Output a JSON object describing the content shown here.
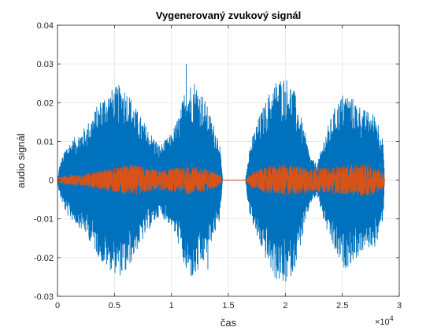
{
  "chart_data": {
    "type": "line",
    "title": "Vygenerovaný zvukový signál",
    "xlabel": "čas",
    "ylabel": "audio signál",
    "x_exponent_base": "×10",
    "x_exponent_power": "4",
    "xlim": [
      0,
      3
    ],
    "ylim": [
      -0.03,
      0.04
    ],
    "x_ticks": [
      "0",
      "0.5",
      "1",
      "1.5",
      "2",
      "2.5",
      "3"
    ],
    "y_ticks": [
      "-0.03",
      "-0.02",
      "-0.01",
      "0",
      "0.01",
      "0.02",
      "0.03",
      "0.04"
    ],
    "x_tick_values": [
      0,
      0.5,
      1,
      1.5,
      2,
      2.5,
      3
    ],
    "y_tick_values": [
      -0.03,
      -0.02,
      -0.01,
      0,
      0.01,
      0.02,
      0.03,
      0.04
    ],
    "grid": true,
    "box": true,
    "signal_end": 2.87,
    "series": [
      {
        "color": "#0072BD",
        "envelope": [
          [
            0.0,
            0.0
          ],
          [
            0.02,
            0.004
          ],
          [
            0.08,
            0.009
          ],
          [
            0.15,
            0.011
          ],
          [
            0.25,
            0.014
          ],
          [
            0.4,
            0.022
          ],
          [
            0.5,
            0.024
          ],
          [
            0.57,
            0.025
          ],
          [
            0.62,
            0.023
          ],
          [
            0.7,
            0.018
          ],
          [
            0.8,
            0.013
          ],
          [
            0.9,
            0.009
          ],
          [
            1.0,
            0.012
          ],
          [
            1.08,
            0.018
          ],
          [
            1.12,
            0.024
          ],
          [
            1.2,
            0.026
          ],
          [
            1.28,
            0.022
          ],
          [
            1.35,
            0.016
          ],
          [
            1.42,
            0.011
          ],
          [
            1.45,
            0.0
          ],
          [
            1.65,
            0.0
          ],
          [
            1.68,
            0.008
          ],
          [
            1.75,
            0.015
          ],
          [
            1.85,
            0.022
          ],
          [
            1.92,
            0.026
          ],
          [
            2.0,
            0.027
          ],
          [
            2.07,
            0.024
          ],
          [
            2.15,
            0.015
          ],
          [
            2.22,
            0.006
          ],
          [
            2.28,
            0.004
          ],
          [
            2.35,
            0.012
          ],
          [
            2.45,
            0.02
          ],
          [
            2.52,
            0.023
          ],
          [
            2.6,
            0.021
          ],
          [
            2.7,
            0.018
          ],
          [
            2.8,
            0.017
          ],
          [
            2.86,
            0.01
          ],
          [
            2.87,
            0.0
          ]
        ],
        "spikes": [
          [
            1.13,
            0.03
          ],
          [
            1.12,
            -0.02
          ],
          [
            1.32,
            -0.023
          ],
          [
            1.98,
            -0.026
          ],
          [
            0.6,
            -0.023
          ]
        ]
      },
      {
        "color": "#D95319",
        "envelope": [
          [
            0.0,
            0.0008
          ],
          [
            0.1,
            0.0012
          ],
          [
            0.25,
            0.0016
          ],
          [
            0.4,
            0.0025
          ],
          [
            0.55,
            0.0035
          ],
          [
            0.65,
            0.004
          ],
          [
            0.75,
            0.0035
          ],
          [
            0.9,
            0.0025
          ],
          [
            1.0,
            0.003
          ],
          [
            1.15,
            0.0035
          ],
          [
            1.3,
            0.003
          ],
          [
            1.42,
            0.0015
          ],
          [
            1.45,
            0.0
          ],
          [
            1.65,
            0.0
          ],
          [
            1.7,
            0.002
          ],
          [
            1.85,
            0.0035
          ],
          [
            2.0,
            0.004
          ],
          [
            2.15,
            0.0035
          ],
          [
            2.3,
            0.003
          ],
          [
            2.45,
            0.0035
          ],
          [
            2.6,
            0.004
          ],
          [
            2.75,
            0.004
          ],
          [
            2.87,
            0.002
          ]
        ]
      }
    ]
  }
}
